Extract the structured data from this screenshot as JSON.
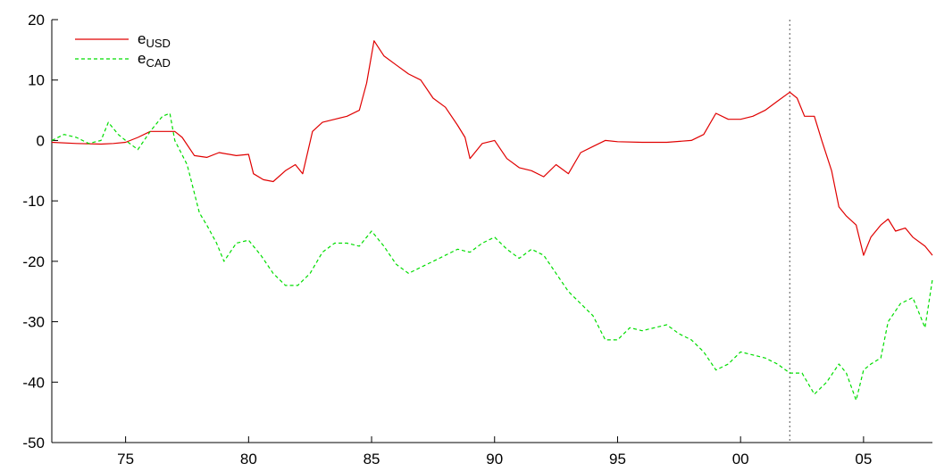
{
  "chart_data": {
    "type": "line",
    "title": "",
    "xlabel": "",
    "ylabel": "",
    "xlim": [
      1972.0,
      2007.8
    ],
    "ylim": [
      -50,
      20
    ],
    "x_ticks": [
      1975,
      1980,
      1985,
      1990,
      1995,
      2000,
      2005
    ],
    "x_tick_labels": [
      "75",
      "80",
      "85",
      "90",
      "95",
      "00",
      "05"
    ],
    "y_ticks": [
      -50,
      -40,
      -30,
      -20,
      -10,
      0,
      10,
      20
    ],
    "y_tick_labels": [
      "-50",
      "-40",
      "-30",
      "-20",
      "-10",
      "0",
      "10",
      "20"
    ],
    "grid": false,
    "legend_position": "top-left",
    "vline": {
      "x": 2002.0,
      "style": "dotted",
      "color": "#555555"
    },
    "series": [
      {
        "name": "e",
        "subscript": "USD",
        "color": "#e00000",
        "dash": "solid",
        "x": [
          1972.0,
          1973.0,
          1974.0,
          1974.5,
          1975.0,
          1975.5,
          1976.0,
          1976.5,
          1977.0,
          1977.3,
          1977.8,
          1978.3,
          1978.8,
          1979.5,
          1980.0,
          1980.2,
          1980.6,
          1981.0,
          1981.5,
          1981.9,
          1982.2,
          1982.6,
          1983.0,
          1983.5,
          1984.0,
          1984.5,
          1984.8,
          1985.1,
          1985.5,
          1986.0,
          1986.5,
          1987.0,
          1987.5,
          1988.0,
          1988.5,
          1988.8,
          1989.0,
          1989.5,
          1990.0,
          1990.5,
          1991.0,
          1991.5,
          1992.0,
          1992.5,
          1993.0,
          1993.5,
          1994.0,
          1994.5,
          1995.0,
          1996.0,
          1997.0,
          1998.0,
          1998.5,
          1999.0,
          1999.5,
          2000.0,
          2000.5,
          2001.0,
          2001.5,
          2002.0,
          2002.3,
          2002.6,
          2003.0,
          2003.3,
          2003.7,
          2004.0,
          2004.3,
          2004.7,
          2005.0,
          2005.3,
          2005.7,
          2006.0,
          2006.3,
          2006.7,
          2007.0,
          2007.5,
          2007.8
        ],
        "y": [
          -0.3,
          -0.5,
          -0.6,
          -0.5,
          -0.3,
          0.5,
          1.5,
          1.5,
          1.5,
          0.5,
          -2.5,
          -2.8,
          -2.0,
          -2.5,
          -2.3,
          -5.5,
          -6.5,
          -6.8,
          -5.0,
          -4.0,
          -5.5,
          1.5,
          3.0,
          3.5,
          4.0,
          5.0,
          9.5,
          16.5,
          14.0,
          12.5,
          11.0,
          10.0,
          7.0,
          5.5,
          2.5,
          0.5,
          -3.0,
          -0.5,
          0.0,
          -3.0,
          -4.5,
          -5.0,
          -6.0,
          -4.0,
          -5.5,
          -2.0,
          -1.0,
          0.0,
          -0.2,
          -0.3,
          -0.3,
          0.0,
          1.0,
          4.5,
          3.5,
          3.5,
          4.0,
          5.0,
          6.5,
          8.0,
          7.0,
          4.0,
          4.0,
          0.0,
          -5.0,
          -11.0,
          -12.5,
          -14.0,
          -19.0,
          -16.0,
          -14.0,
          -13.0,
          -15.0,
          -14.5,
          -16.0,
          -17.5,
          -19.0
        ]
      },
      {
        "name": "e",
        "subscript": "CAD",
        "color": "#00dd00",
        "dash": "dashed",
        "x": [
          1972.0,
          1972.5,
          1973.0,
          1973.5,
          1974.0,
          1974.3,
          1974.7,
          1975.0,
          1975.5,
          1976.0,
          1976.5,
          1976.8,
          1977.0,
          1977.5,
          1978.0,
          1978.3,
          1978.7,
          1979.0,
          1979.5,
          1980.0,
          1980.5,
          1981.0,
          1981.5,
          1982.0,
          1982.5,
          1983.0,
          1983.5,
          1984.0,
          1984.5,
          1985.0,
          1985.5,
          1986.0,
          1986.5,
          1987.0,
          1987.5,
          1988.0,
          1988.5,
          1989.0,
          1989.5,
          1990.0,
          1990.5,
          1991.0,
          1991.5,
          1992.0,
          1992.5,
          1993.0,
          1993.5,
          1994.0,
          1994.5,
          1995.0,
          1995.5,
          1996.0,
          1996.5,
          1997.0,
          1997.5,
          1998.0,
          1998.5,
          1999.0,
          1999.5,
          2000.0,
          2000.5,
          2001.0,
          2001.5,
          2002.0,
          2002.5,
          2003.0,
          2003.5,
          2004.0,
          2004.3,
          2004.7,
          2005.0,
          2005.3,
          2005.7,
          2006.0,
          2006.5,
          2007.0,
          2007.5,
          2007.8
        ],
        "y": [
          0.0,
          1.0,
          0.5,
          -0.5,
          0.0,
          3.0,
          1.0,
          0.0,
          -1.5,
          1.5,
          4.0,
          4.5,
          0.0,
          -4.0,
          -12.0,
          -14.0,
          -17.0,
          -20.0,
          -17.0,
          -16.5,
          -19.0,
          -22.0,
          -24.0,
          -24.0,
          -22.0,
          -18.5,
          -17.0,
          -17.0,
          -17.5,
          -15.0,
          -17.5,
          -20.5,
          -22.0,
          -21.0,
          -20.0,
          -19.0,
          -18.0,
          -18.5,
          -17.0,
          -16.0,
          -18.0,
          -19.5,
          -18.0,
          -19.0,
          -22.0,
          -25.0,
          -27.0,
          -29.0,
          -33.0,
          -33.0,
          -31.0,
          -31.5,
          -31.0,
          -30.5,
          -32.0,
          -33.0,
          -35.0,
          -38.0,
          -37.0,
          -35.0,
          -35.5,
          -36.0,
          -37.0,
          -38.5,
          -38.5,
          -42.0,
          -40.0,
          -37.0,
          -38.5,
          -43.0,
          -38.0,
          -37.0,
          -36.0,
          -30.0,
          -27.0,
          -26.0,
          -31.0,
          -23.0
        ]
      }
    ]
  }
}
